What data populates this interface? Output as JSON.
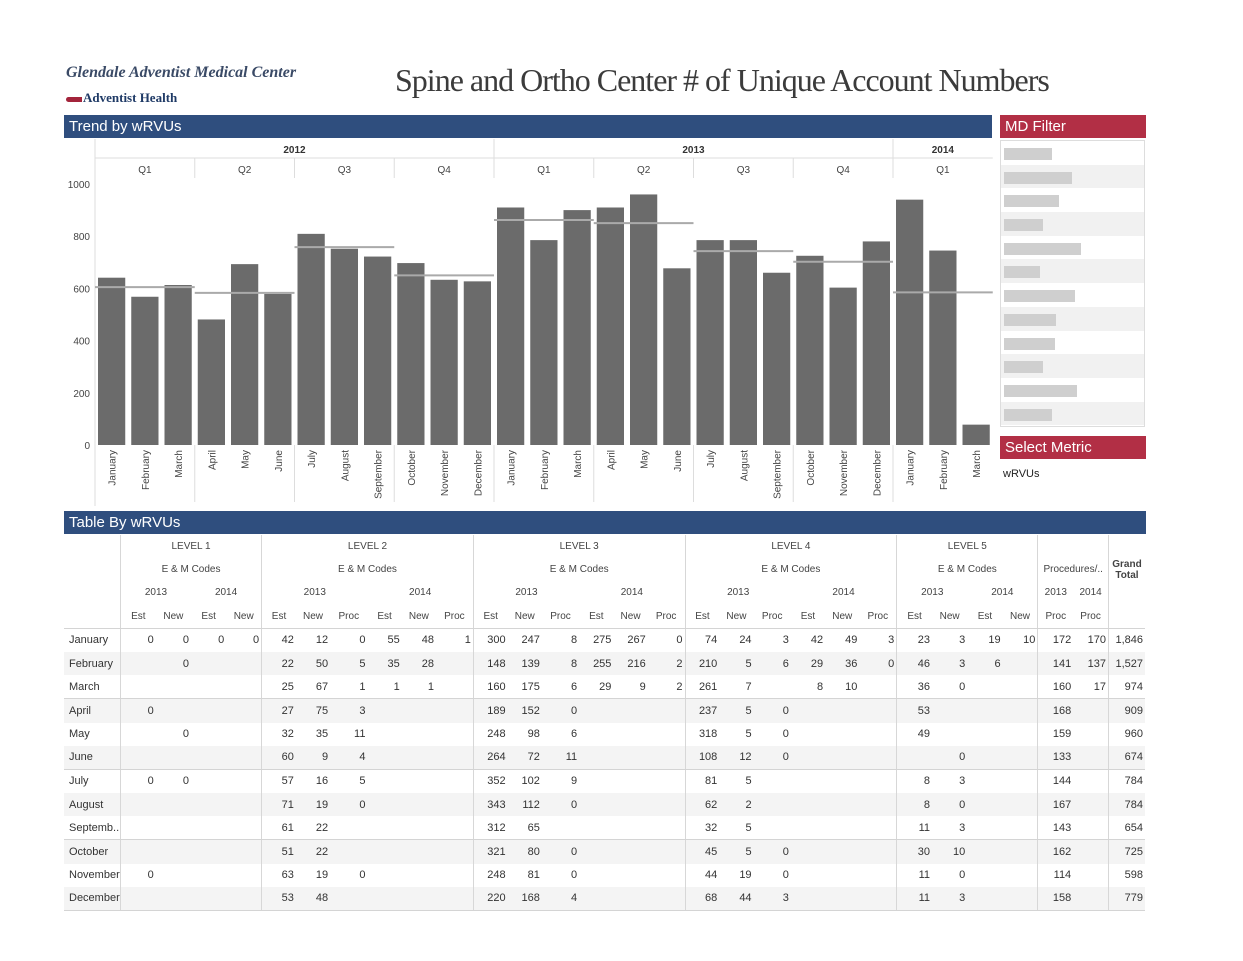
{
  "org": {
    "name": "Glendale Adventist Medical Center",
    "brand": "Adventist Health"
  },
  "title": "Spine and Ortho Center # of Unique Account Numbers",
  "sections": {
    "trend": "Trend by  wRVUs",
    "md_filter": "MD Filter",
    "select_metric": "Select Metric",
    "table": "Table By  wRVUs"
  },
  "md_filter_fill": [
    0.33,
    0.47,
    0.38,
    0.27,
    0.53,
    0.25,
    0.49,
    0.36,
    0.35,
    0.27,
    0.5,
    0.33
  ],
  "metric_value": "wRVUs",
  "colors": {
    "bar": "#6b6b6b",
    "avg": "#aaaaaa",
    "blue": "#2f4e7e",
    "red": "#b22f45"
  },
  "chart_data": {
    "type": "bar",
    "years": [
      {
        "label": "2012",
        "quarters": 4
      },
      {
        "label": "2013",
        "quarters": 4
      },
      {
        "label": "2014",
        "quarters": 1
      }
    ],
    "quarters": [
      "Q1",
      "Q2",
      "Q3",
      "Q4",
      "Q1",
      "Q2",
      "Q3",
      "Q4",
      "Q1"
    ],
    "categories": [
      "January",
      "February",
      "March",
      "April",
      "May",
      "June",
      "July",
      "August",
      "September",
      "October",
      "November",
      "December",
      "January",
      "February",
      "March",
      "April",
      "May",
      "June",
      "July",
      "August",
      "September",
      "October",
      "November",
      "December",
      "January",
      "February",
      "March"
    ],
    "values": [
      641,
      568,
      613,
      481,
      693,
      579,
      809,
      752,
      722,
      697,
      633,
      627,
      910,
      785,
      900,
      910,
      960,
      677,
      785,
      785,
      660,
      725,
      603,
      780,
      940,
      745,
      78
    ],
    "quarter_avg": [
      605,
      583,
      758,
      650,
      862,
      850,
      743,
      702,
      585
    ],
    "yticks": [
      0,
      200,
      400,
      600,
      800,
      1000
    ],
    "ylim": [
      0,
      1000
    ],
    "grid": false
  },
  "table": {
    "level_headers": [
      "LEVEL 1",
      "LEVEL 2",
      "LEVEL 3",
      "LEVEL 4",
      "LEVEL 5"
    ],
    "em": "E & M Codes",
    "proc_header": "Procedures/..",
    "grand": "Grand Total",
    "year_2013": "2013",
    "year_2014": "2014",
    "col_est": "Est",
    "col_new": "New",
    "col_proc": "Proc",
    "rows": [
      [
        "January",
        "0",
        "0",
        "0",
        "0",
        "42",
        "12",
        "0",
        "55",
        "48",
        "1",
        "300",
        "247",
        "8",
        "275",
        "267",
        "0",
        "74",
        "24",
        "3",
        "42",
        "49",
        "3",
        "23",
        "3",
        "19",
        "10",
        "172",
        "170",
        "1,846"
      ],
      [
        "February",
        "",
        "0",
        "",
        "",
        "22",
        "50",
        "5",
        "35",
        "28",
        "",
        "148",
        "139",
        "8",
        "255",
        "216",
        "2",
        "210",
        "5",
        "6",
        "29",
        "36",
        "0",
        "46",
        "3",
        "6",
        "",
        "141",
        "137",
        "1,527"
      ],
      [
        "March",
        "",
        "",
        "",
        "",
        "25",
        "67",
        "1",
        "1",
        "1",
        "",
        "160",
        "175",
        "6",
        "29",
        "9",
        "2",
        "261",
        "7",
        "",
        "8",
        "10",
        "",
        "36",
        "0",
        "",
        "",
        "160",
        "17",
        "974"
      ],
      [
        "April",
        "0",
        "",
        "",
        "",
        "27",
        "75",
        "3",
        "",
        "",
        "",
        "189",
        "152",
        "0",
        "",
        "",
        "",
        "237",
        "5",
        "0",
        "",
        "",
        "",
        "53",
        "",
        "",
        "",
        "168",
        "",
        "909"
      ],
      [
        "May",
        "",
        "0",
        "",
        "",
        "32",
        "35",
        "11",
        "",
        "",
        "",
        "248",
        "98",
        "6",
        "",
        "",
        "",
        "318",
        "5",
        "0",
        "",
        "",
        "",
        "49",
        "",
        "",
        "",
        "159",
        "",
        "960"
      ],
      [
        "June",
        "",
        "",
        "",
        "",
        "60",
        "9",
        "4",
        "",
        "",
        "",
        "264",
        "72",
        "11",
        "",
        "",
        "",
        "108",
        "12",
        "0",
        "",
        "",
        "",
        "",
        "0",
        "",
        "",
        "133",
        "",
        "674"
      ],
      [
        "July",
        "0",
        "0",
        "",
        "",
        "57",
        "16",
        "5",
        "",
        "",
        "",
        "352",
        "102",
        "9",
        "",
        "",
        "",
        "81",
        "5",
        "",
        "",
        "",
        "",
        "8",
        "3",
        "",
        "",
        "144",
        "",
        "784"
      ],
      [
        "August",
        "",
        "",
        "",
        "",
        "71",
        "19",
        "0",
        "",
        "",
        "",
        "343",
        "112",
        "0",
        "",
        "",
        "",
        "62",
        "2",
        "",
        "",
        "",
        "",
        "8",
        "0",
        "",
        "",
        "167",
        "",
        "784"
      ],
      [
        "Septemb..",
        "",
        "",
        "",
        "",
        "61",
        "22",
        "",
        "",
        "",
        "",
        "312",
        "65",
        "",
        "",
        "",
        "",
        "32",
        "5",
        "",
        "",
        "",
        "",
        "11",
        "3",
        "",
        "",
        "143",
        "",
        "654"
      ],
      [
        "October",
        "",
        "",
        "",
        "",
        "51",
        "22",
        "",
        "",
        "",
        "",
        "321",
        "80",
        "0",
        "",
        "",
        "",
        "45",
        "5",
        "0",
        "",
        "",
        "",
        "30",
        "10",
        "",
        "",
        "162",
        "",
        "725"
      ],
      [
        "November",
        "0",
        "",
        "",
        "",
        "63",
        "19",
        "0",
        "",
        "",
        "",
        "248",
        "81",
        "0",
        "",
        "",
        "",
        "44",
        "19",
        "0",
        "",
        "",
        "",
        "11",
        "0",
        "",
        "",
        "114",
        "",
        "598"
      ],
      [
        "December",
        "",
        "",
        "",
        "",
        "53",
        "48",
        "",
        "",
        "",
        "",
        "220",
        "168",
        "4",
        "",
        "",
        "",
        "68",
        "44",
        "3",
        "",
        "",
        "",
        "11",
        "3",
        "",
        "",
        "158",
        "",
        "779"
      ]
    ]
  }
}
